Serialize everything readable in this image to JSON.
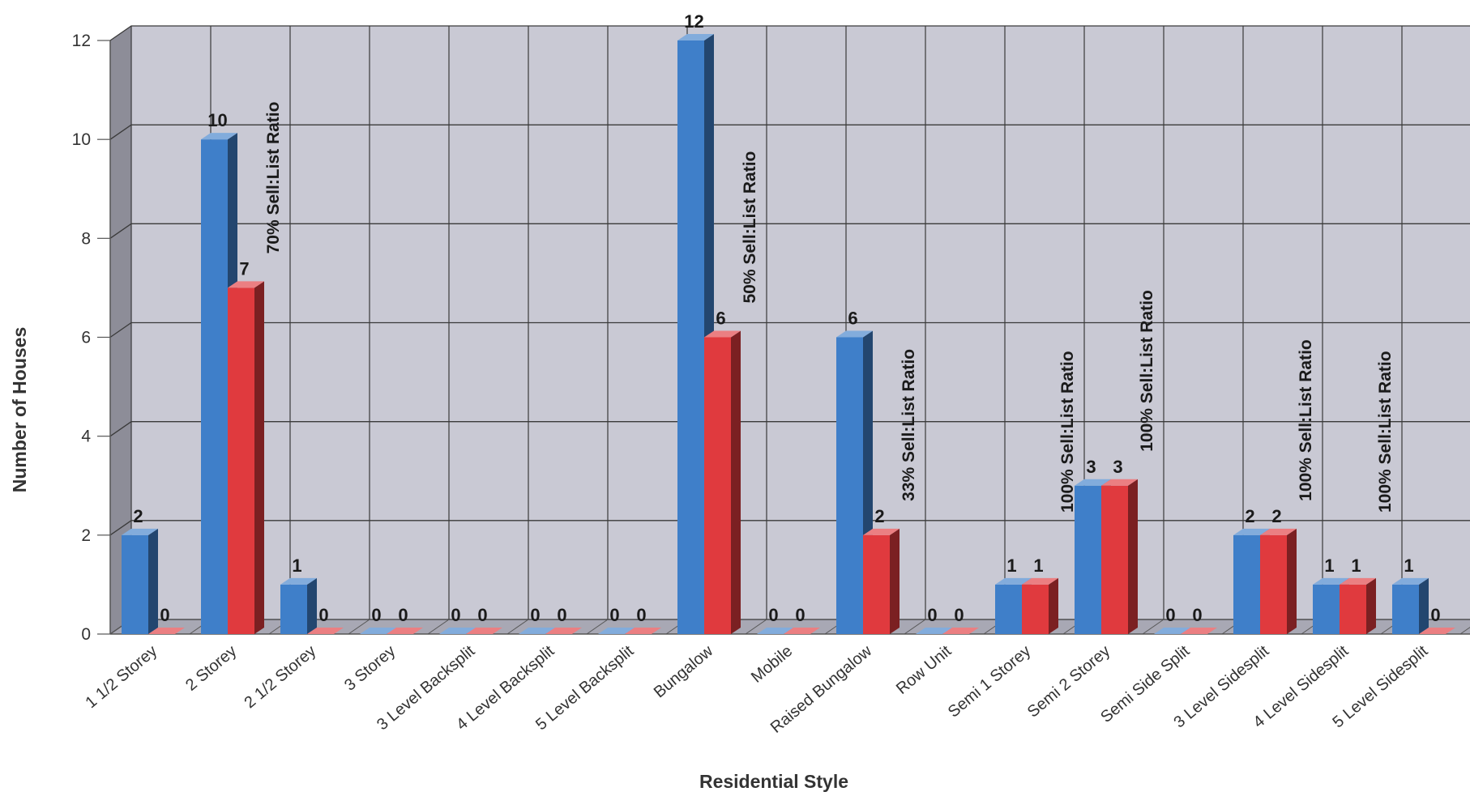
{
  "chart_data": {
    "type": "bar",
    "title": "",
    "xlabel": "Residential Style",
    "ylabel": "Number of Houses",
    "ylim": [
      0,
      12
    ],
    "yticks": [
      0,
      2,
      4,
      6,
      8,
      10,
      12
    ],
    "grid": true,
    "legend": "none",
    "categories": [
      "1 1/2 Storey",
      "2 Storey",
      "2 1/2 Storey",
      "3 Storey",
      "3 Level Backsplit",
      "4 Level Backsplit",
      "5 Level Backsplit",
      "Bungalow",
      "Mobile",
      "Raised Bungalow",
      "Row Unit",
      "Semi 1 Storey",
      "Semi 2 Storey",
      "Semi Side Split",
      "3 Level Sidesplit",
      "4 Level Sidesplit",
      "5 Level Sidesplit"
    ],
    "series": [
      {
        "color": "#3f7fc9",
        "values": [
          2,
          10,
          1,
          0,
          0,
          0,
          0,
          12,
          0,
          6,
          0,
          1,
          3,
          0,
          2,
          1,
          1
        ]
      },
      {
        "color": "#e03a3e",
        "values": [
          0,
          7,
          0,
          0,
          0,
          0,
          0,
          6,
          0,
          2,
          0,
          1,
          3,
          0,
          2,
          1,
          0
        ]
      }
    ],
    "annotations": [
      {
        "category": "2 Storey",
        "text": "70% Sell:List Ratio"
      },
      {
        "category": "Bungalow",
        "text": "50% Sell:List Ratio"
      },
      {
        "category": "Raised Bungalow",
        "text": "33% Sell:List Ratio"
      },
      {
        "category": "Semi 1 Storey",
        "text": "100% Sell:List Ratio"
      },
      {
        "category": "Semi 2 Storey",
        "text": "100% Sell:List Ratio"
      },
      {
        "category": "3 Level Sidesplit",
        "text": "100% Sell:List Ratio"
      },
      {
        "category": "4 Level Sidesplit",
        "text": "100% Sell:List Ratio"
      }
    ]
  }
}
